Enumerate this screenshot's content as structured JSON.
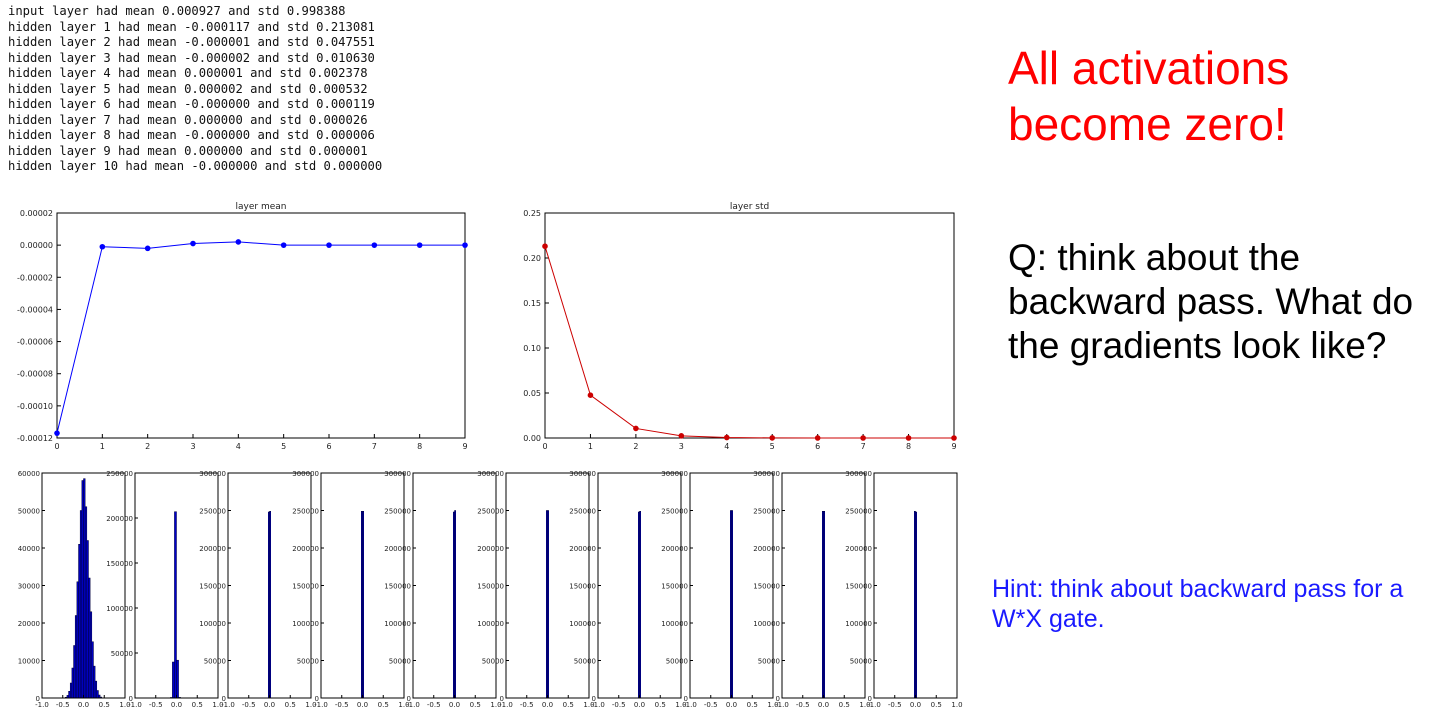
{
  "log_lines": [
    "input layer had mean 0.000927 and std 0.998388",
    "hidden layer 1 had mean -0.000117 and std 0.213081",
    "hidden layer 2 had mean -0.000001 and std 0.047551",
    "hidden layer 3 had mean -0.000002 and std 0.010630",
    "hidden layer 4 had mean 0.000001 and std 0.002378",
    "hidden layer 5 had mean 0.000002 and std 0.000532",
    "hidden layer 6 had mean -0.000000 and std 0.000119",
    "hidden layer 7 had mean 0.000000 and std 0.000026",
    "hidden layer 8 had mean -0.000000 and std 0.000006",
    "hidden layer 9 had mean 0.000000 and std 0.000001",
    "hidden layer 10 had mean -0.000000 and std 0.000000"
  ],
  "headline": "All activations become zero!",
  "question": "Q: think about the backward pass. What do the gradients look like?",
  "hint": "Hint: think about backward pass for a W*X gate.",
  "chart_data": [
    {
      "type": "line",
      "title": "layer mean",
      "color": "#0000ff",
      "x": [
        0,
        1,
        2,
        3,
        4,
        5,
        6,
        7,
        8,
        9
      ],
      "y": [
        -0.000117,
        -1e-06,
        -2e-06,
        1e-06,
        2e-06,
        0.0,
        0.0,
        0.0,
        0.0,
        0.0
      ],
      "xlim": [
        0,
        9
      ],
      "ylim": [
        -0.00012,
        2e-05
      ],
      "xticks": [
        "0",
        "1",
        "2",
        "3",
        "4",
        "5",
        "6",
        "7",
        "8",
        "9"
      ],
      "yticks": [
        {
          "value": 2e-05,
          "label": "0.00002"
        },
        {
          "value": 0.0,
          "label": "0.00000"
        },
        {
          "value": -2e-05,
          "label": "-0.00002"
        },
        {
          "value": -4e-05,
          "label": "-0.00004"
        },
        {
          "value": -6e-05,
          "label": "-0.00006"
        },
        {
          "value": -8e-05,
          "label": "-0.00008"
        },
        {
          "value": -0.0001,
          "label": "-0.00010"
        },
        {
          "value": -0.00012,
          "label": "-0.00012"
        }
      ]
    },
    {
      "type": "line",
      "title": "layer std",
      "color": "#cc0000",
      "x": [
        0,
        1,
        2,
        3,
        4,
        5,
        6,
        7,
        8,
        9
      ],
      "y": [
        0.213081,
        0.047551,
        0.01063,
        0.002378,
        0.000532,
        0.000119,
        2.6e-05,
        6e-06,
        1e-06,
        0.0
      ],
      "xlim": [
        0,
        9
      ],
      "ylim": [
        0,
        0.25
      ],
      "xticks": [
        "0",
        "1",
        "2",
        "3",
        "4",
        "5",
        "6",
        "7",
        "8",
        "9"
      ],
      "yticks": [
        {
          "value": 0.25,
          "label": "0.25"
        },
        {
          "value": 0.2,
          "label": "0.20"
        },
        {
          "value": 0.15,
          "label": "0.15"
        },
        {
          "value": 0.1,
          "label": "0.10"
        },
        {
          "value": 0.05,
          "label": "0.05"
        },
        {
          "value": 0.0,
          "label": "0.00"
        }
      ]
    },
    {
      "type": "bar",
      "layer": 1,
      "color": "#0000cc",
      "xlim": [
        -1,
        1
      ],
      "ylim": [
        0,
        60000
      ],
      "xticks": [
        "-1.0",
        "-0.5",
        "0.0",
        "0.5",
        "1.0"
      ],
      "yticks": [
        "0",
        "10000",
        "20000",
        "30000",
        "40000",
        "50000",
        "60000"
      ],
      "bin_centers": [
        -0.42,
        -0.38,
        -0.34,
        -0.3,
        -0.26,
        -0.22,
        -0.18,
        -0.14,
        -0.1,
        -0.06,
        -0.02,
        0.02,
        0.06,
        0.1,
        0.14,
        0.18,
        0.22,
        0.26,
        0.3,
        0.34,
        0.38,
        0.42
      ],
      "values": [
        200,
        700,
        1800,
        4000,
        8000,
        14000,
        22000,
        31000,
        41000,
        50000,
        58000,
        58500,
        51000,
        42000,
        32000,
        23000,
        15000,
        8500,
        4500,
        2000,
        800,
        250
      ]
    },
    {
      "type": "bar",
      "layer": 2,
      "color": "#0000cc",
      "xlim": [
        -1,
        1
      ],
      "ylim": [
        0,
        250000
      ],
      "xticks": [
        "-1.0",
        "-0.5",
        "0.0",
        "0.5",
        "1.0"
      ],
      "yticks": [
        "0",
        "50000",
        "100000",
        "150000",
        "200000",
        "250000"
      ],
      "bin_centers": [
        -0.125,
        -0.075,
        -0.025,
        0.025,
        0.075
      ],
      "values": [
        600,
        40000,
        207000,
        42000,
        700
      ]
    },
    {
      "type": "bar",
      "layer": 3,
      "color": "#0000cc",
      "xlim": [
        -1,
        1
      ],
      "ylim": [
        0,
        300000
      ],
      "xticks": [
        "-1.0",
        "-0.5",
        "0.0",
        "0.5",
        "1.0"
      ],
      "yticks": [
        "0",
        "50000",
        "100000",
        "150000",
        "200000",
        "250000",
        "300000"
      ],
      "bin_centers": [
        -0.015,
        0.015
      ],
      "values": [
        248000,
        249000
      ]
    },
    {
      "type": "bar",
      "layer": 4,
      "color": "#0000cc",
      "xlim": [
        -1,
        1
      ],
      "ylim": [
        0,
        300000
      ],
      "xticks": [
        "-1.0",
        "-0.5",
        "0.0",
        "0.5",
        "1.0"
      ],
      "yticks": [
        "0",
        "50000",
        "100000",
        "150000",
        "200000",
        "250000",
        "300000"
      ],
      "bin_centers": [
        -0.015,
        0.015
      ],
      "values": [
        249000,
        249000
      ]
    },
    {
      "type": "bar",
      "layer": 5,
      "color": "#0000cc",
      "xlim": [
        -1,
        1
      ],
      "ylim": [
        0,
        300000
      ],
      "xticks": [
        "-1.0",
        "-0.5",
        "0.0",
        "0.5",
        "1.0"
      ],
      "yticks": [
        "0",
        "50000",
        "100000",
        "150000",
        "200000",
        "250000",
        "300000"
      ],
      "bin_centers": [
        -0.015,
        0.015
      ],
      "values": [
        248000,
        250000
      ]
    },
    {
      "type": "bar",
      "layer": 6,
      "color": "#0000cc",
      "xlim": [
        -1,
        1
      ],
      "ylim": [
        0,
        300000
      ],
      "xticks": [
        "-1.0",
        "-0.5",
        "0.0",
        "0.5",
        "1.0"
      ],
      "yticks": [
        "0",
        "50000",
        "100000",
        "150000",
        "200000",
        "250000",
        "300000"
      ],
      "bin_centers": [
        -0.015,
        0.015
      ],
      "values": [
        250000,
        250000
      ]
    },
    {
      "type": "bar",
      "layer": 7,
      "color": "#0000cc",
      "xlim": [
        -1,
        1
      ],
      "ylim": [
        0,
        300000
      ],
      "xticks": [
        "-1.0",
        "-0.5",
        "0.0",
        "0.5",
        "1.0"
      ],
      "yticks": [
        "0",
        "50000",
        "100000",
        "150000",
        "200000",
        "250000",
        "300000"
      ],
      "bin_centers": [
        -0.015,
        0.015
      ],
      "values": [
        248000,
        249000
      ]
    },
    {
      "type": "bar",
      "layer": 8,
      "color": "#0000cc",
      "xlim": [
        -1,
        1
      ],
      "ylim": [
        0,
        300000
      ],
      "xticks": [
        "-1.0",
        "-0.5",
        "0.0",
        "0.5",
        "1.0"
      ],
      "yticks": [
        "0",
        "50000",
        "100000",
        "150000",
        "200000",
        "250000",
        "300000"
      ],
      "bin_centers": [
        -0.015,
        0.015
      ],
      "values": [
        250000,
        250000
      ]
    },
    {
      "type": "bar",
      "layer": 9,
      "color": "#0000cc",
      "xlim": [
        -1,
        1
      ],
      "ylim": [
        0,
        300000
      ],
      "xticks": [
        "-1.0",
        "-0.5",
        "0.0",
        "0.5",
        "1.0"
      ],
      "yticks": [
        "0",
        "50000",
        "100000",
        "150000",
        "200000",
        "250000",
        "300000"
      ],
      "bin_centers": [
        -0.015,
        0.015
      ],
      "values": [
        249000,
        249000
      ]
    },
    {
      "type": "bar",
      "layer": 10,
      "color": "#0000cc",
      "xlim": [
        -1,
        1
      ],
      "ylim": [
        0,
        300000
      ],
      "xticks": [
        "-1.0",
        "-0.5",
        "0.0",
        "0.5",
        "1.0"
      ],
      "yticks": [
        "0",
        "50000",
        "100000",
        "150000",
        "200000",
        "250000",
        "300000"
      ],
      "bin_centers": [
        -0.015,
        0.015
      ],
      "values": [
        249000,
        248000
      ]
    }
  ]
}
